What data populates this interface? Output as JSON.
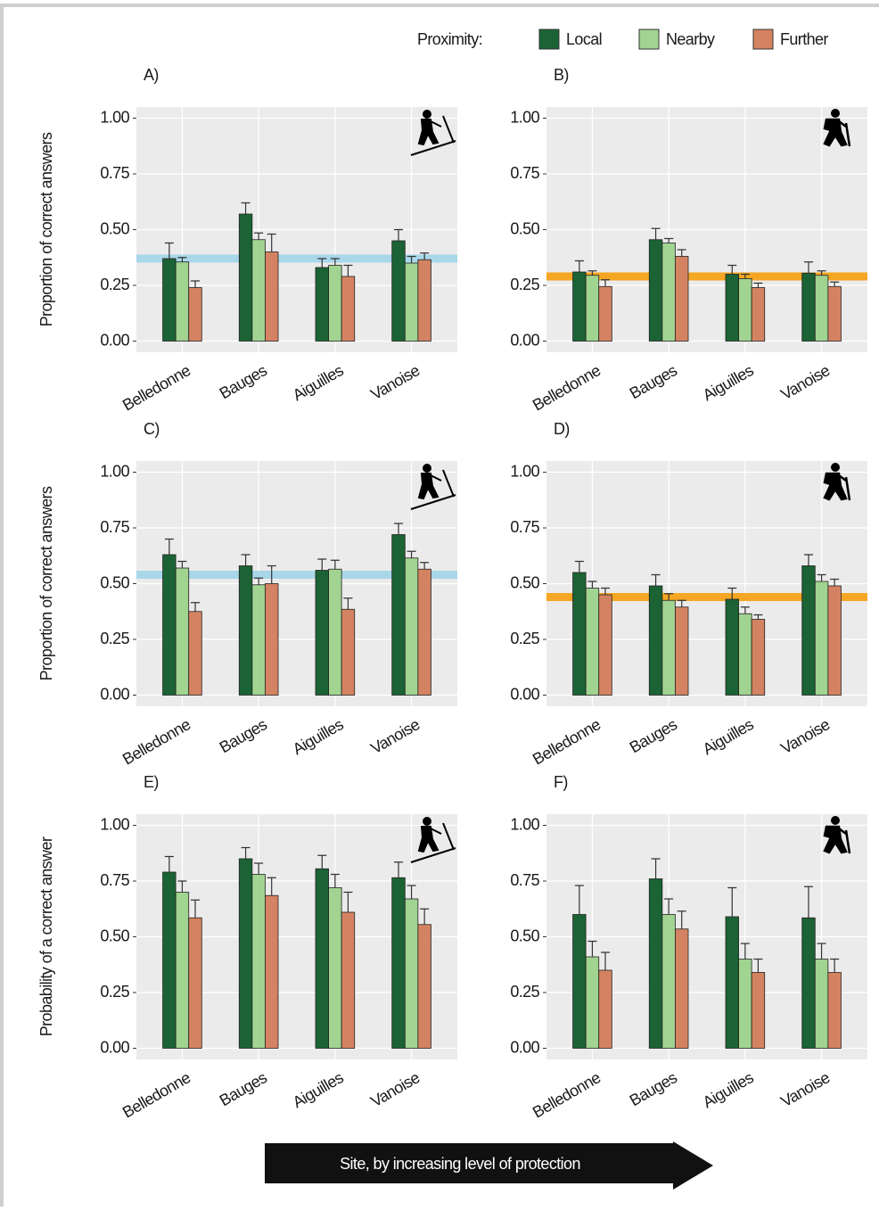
{
  "legend_title": "Proximity:",
  "x_caption": "Site, by increasing level of protection",
  "chart_data": [
    {
      "type": "bar",
      "title": "A)",
      "ylabel": "Proportion of correct answers",
      "icon": "ski",
      "categories": [
        "Belledonne",
        "Bauges",
        "Aiguilles",
        "Vanoise"
      ],
      "series": [
        {
          "name": "Local",
          "color": "#1b6334",
          "values": [
            0.37,
            0.57,
            0.33,
            0.45
          ],
          "errors": [
            0.07,
            0.05,
            0.04,
            0.05
          ]
        },
        {
          "name": "Nearby",
          "color": "#a1d391",
          "values": [
            0.355,
            0.455,
            0.34,
            0.35
          ],
          "errors": [
            0.02,
            0.03,
            0.03,
            0.03
          ]
        },
        {
          "name": "Further",
          "color": "#d48362",
          "values": [
            0.24,
            0.4,
            0.29,
            0.365
          ],
          "errors": [
            0.03,
            0.08,
            0.05,
            0.03
          ]
        }
      ],
      "ylim": [
        -0.05,
        1.05
      ],
      "yticks": [
        {
          "value": 0,
          "label": "0.00"
        },
        {
          "value": 0.25,
          "label": "0.25"
        },
        {
          "value": 0.5,
          "label": "0.50"
        },
        {
          "value": 0.75,
          "label": "0.75"
        },
        {
          "value": 1,
          "label": "1.00"
        }
      ],
      "grid": true,
      "reference_line": {
        "value": 0.37,
        "color": "#a8d7ea"
      }
    },
    {
      "type": "bar",
      "title": "B)",
      "icon": "hike",
      "categories": [
        "Belledonne",
        "Bauges",
        "Aiguilles",
        "Vanoise"
      ],
      "series": [
        {
          "name": "Local",
          "color": "#1b6334",
          "values": [
            0.31,
            0.455,
            0.3,
            0.305
          ],
          "errors": [
            0.05,
            0.05,
            0.04,
            0.05
          ]
        },
        {
          "name": "Nearby",
          "color": "#a1d391",
          "values": [
            0.295,
            0.44,
            0.28,
            0.295
          ],
          "errors": [
            0.02,
            0.02,
            0.02,
            0.02
          ]
        },
        {
          "name": "Further",
          "color": "#d48362",
          "values": [
            0.245,
            0.38,
            0.24,
            0.245
          ],
          "errors": [
            0.03,
            0.03,
            0.02,
            0.02
          ]
        }
      ],
      "ylim": [
        -0.05,
        1.05
      ],
      "yticks": [
        {
          "value": 0,
          "label": "0.00"
        },
        {
          "value": 0.25,
          "label": "0.25"
        },
        {
          "value": 0.5,
          "label": "0.50"
        },
        {
          "value": 0.75,
          "label": "0.75"
        },
        {
          "value": 1,
          "label": "1.00"
        }
      ],
      "grid": true,
      "reference_line": {
        "value": 0.29,
        "color": "#f5a623"
      }
    },
    {
      "type": "bar",
      "title": "C)",
      "ylabel": "Proportion of correct answers",
      "icon": "ski",
      "categories": [
        "Belledonne",
        "Bauges",
        "Aiguilles",
        "Vanoise"
      ],
      "series": [
        {
          "name": "Local",
          "color": "#1b6334",
          "values": [
            0.63,
            0.58,
            0.56,
            0.72
          ],
          "errors": [
            0.07,
            0.05,
            0.05,
            0.05
          ]
        },
        {
          "name": "Nearby",
          "color": "#a1d391",
          "values": [
            0.57,
            0.495,
            0.565,
            0.615
          ],
          "errors": [
            0.03,
            0.03,
            0.04,
            0.03
          ]
        },
        {
          "name": "Further",
          "color": "#d48362",
          "values": [
            0.375,
            0.5,
            0.385,
            0.565
          ],
          "errors": [
            0.04,
            0.08,
            0.05,
            0.03
          ]
        }
      ],
      "ylim": [
        -0.05,
        1.05
      ],
      "yticks": [
        {
          "value": 0,
          "label": "0.00"
        },
        {
          "value": 0.25,
          "label": "0.25"
        },
        {
          "value": 0.5,
          "label": "0.50"
        },
        {
          "value": 0.75,
          "label": "0.75"
        },
        {
          "value": 1,
          "label": "1.00"
        }
      ],
      "grid": true,
      "reference_line": {
        "value": 0.54,
        "color": "#a8d7ea"
      }
    },
    {
      "type": "bar",
      "title": "D)",
      "icon": "hike",
      "categories": [
        "Belledonne",
        "Bauges",
        "Aiguilles",
        "Vanoise"
      ],
      "series": [
        {
          "name": "Local",
          "color": "#1b6334",
          "values": [
            0.55,
            0.49,
            0.43,
            0.58
          ],
          "errors": [
            0.05,
            0.05,
            0.05,
            0.05
          ]
        },
        {
          "name": "Nearby",
          "color": "#a1d391",
          "values": [
            0.48,
            0.425,
            0.365,
            0.51
          ],
          "errors": [
            0.03,
            0.03,
            0.03,
            0.03
          ]
        },
        {
          "name": "Further",
          "color": "#d48362",
          "values": [
            0.45,
            0.395,
            0.34,
            0.49
          ],
          "errors": [
            0.03,
            0.03,
            0.02,
            0.03
          ]
        }
      ],
      "ylim": [
        -0.05,
        1.05
      ],
      "yticks": [
        {
          "value": 0,
          "label": "0.00"
        },
        {
          "value": 0.25,
          "label": "0.25"
        },
        {
          "value": 0.5,
          "label": "0.50"
        },
        {
          "value": 0.75,
          "label": "0.75"
        },
        {
          "value": 1,
          "label": "1.00"
        }
      ],
      "grid": true,
      "reference_line": {
        "value": 0.44,
        "color": "#f5a623"
      }
    },
    {
      "type": "bar",
      "title": "E)",
      "ylabel": "Probability of a correct answer",
      "icon": "ski",
      "categories": [
        "Belledonne",
        "Bauges",
        "Aiguilles",
        "Vanoise"
      ],
      "series": [
        {
          "name": "Local",
          "color": "#1b6334",
          "values": [
            0.79,
            0.85,
            0.805,
            0.765
          ],
          "errors": [
            0.07,
            0.05,
            0.06,
            0.07
          ]
        },
        {
          "name": "Nearby",
          "color": "#a1d391",
          "values": [
            0.7,
            0.78,
            0.72,
            0.67
          ],
          "errors": [
            0.05,
            0.05,
            0.06,
            0.06
          ]
        },
        {
          "name": "Further",
          "color": "#d48362",
          "values": [
            0.585,
            0.685,
            0.61,
            0.555
          ],
          "errors": [
            0.08,
            0.08,
            0.09,
            0.07
          ]
        }
      ],
      "ylim": [
        -0.05,
        1.05
      ],
      "yticks": [
        {
          "value": 0,
          "label": "0.00"
        },
        {
          "value": 0.25,
          "label": "0.25"
        },
        {
          "value": 0.5,
          "label": "0.50"
        },
        {
          "value": 0.75,
          "label": "0.75"
        },
        {
          "value": 1,
          "label": "1.00"
        }
      ],
      "grid": true
    },
    {
      "type": "bar",
      "title": "F)",
      "icon": "hike",
      "categories": [
        "Belledonne",
        "Bauges",
        "Aiguilles",
        "Vanoise"
      ],
      "series": [
        {
          "name": "Local",
          "color": "#1b6334",
          "values": [
            0.6,
            0.76,
            0.59,
            0.585
          ],
          "errors": [
            0.13,
            0.09,
            0.13,
            0.14
          ]
        },
        {
          "name": "Nearby",
          "color": "#a1d391",
          "values": [
            0.41,
            0.6,
            0.4,
            0.4
          ],
          "errors": [
            0.07,
            0.07,
            0.07,
            0.07
          ]
        },
        {
          "name": "Further",
          "color": "#d48362",
          "values": [
            0.35,
            0.535,
            0.34,
            0.34
          ],
          "errors": [
            0.08,
            0.08,
            0.06,
            0.06
          ]
        }
      ],
      "ylim": [
        -0.05,
        1.05
      ],
      "yticks": [
        {
          "value": 0,
          "label": "0.00"
        },
        {
          "value": 0.25,
          "label": "0.25"
        },
        {
          "value": 0.5,
          "label": "0.50"
        },
        {
          "value": 0.75,
          "label": "0.75"
        },
        {
          "value": 1,
          "label": "1.00"
        }
      ],
      "grid": true
    }
  ]
}
